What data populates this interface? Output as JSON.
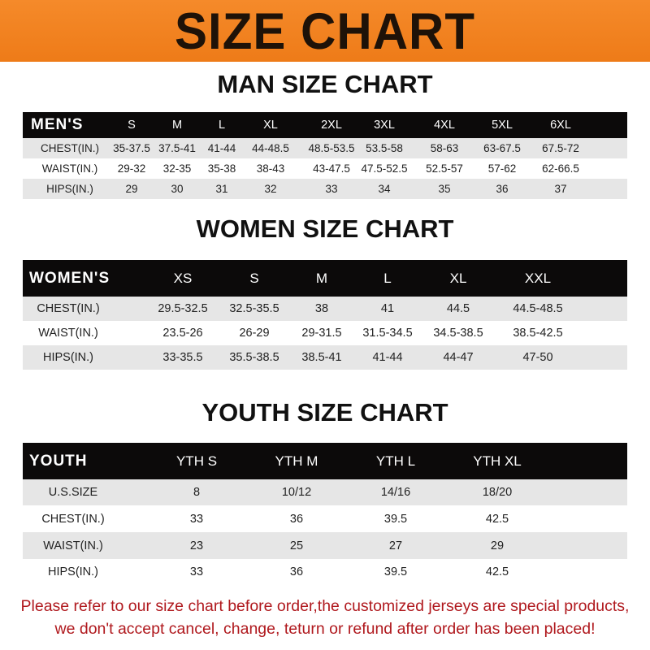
{
  "banner": {
    "title": "SIZE CHART",
    "color": "#f0801c"
  },
  "men": {
    "title": "MAN SIZE CHART",
    "header": [
      "MEN'S",
      "S",
      "M",
      "L",
      "XL",
      "2XL",
      "3XL",
      "4XL",
      "5XL",
      "6XL"
    ],
    "rows": [
      [
        "CHEST(IN.)",
        "35-37.5",
        "37.5-41",
        "41-44",
        "44-48.5",
        "48.5-53.5",
        "53.5-58",
        "58-63",
        "63-67.5",
        "67.5-72"
      ],
      [
        "WAIST(IN.)",
        "29-32",
        "32-35",
        "35-38",
        "38-43",
        "43-47.5",
        "47.5-52.5",
        "52.5-57",
        "57-62",
        "62-66.5"
      ],
      [
        "HIPS(IN.)",
        "29",
        "30",
        "31",
        "32",
        "33",
        "34",
        "35",
        "36",
        "37"
      ]
    ]
  },
  "women": {
    "title": "WOMEN SIZE CHART",
    "header": [
      "WOMEN'S",
      "XS",
      "S",
      "M",
      "L",
      "XL",
      "XXL"
    ],
    "rows": [
      [
        "CHEST(IN.)",
        "29.5-32.5",
        "32.5-35.5",
        "38",
        "41",
        "44.5",
        "44.5-48.5"
      ],
      [
        "WAIST(IN.)",
        "23.5-26",
        "26-29",
        "29-31.5",
        "31.5-34.5",
        "34.5-38.5",
        "38.5-42.5"
      ],
      [
        "HIPS(IN.)",
        "33-35.5",
        "35.5-38.5",
        "38.5-41",
        "41-44",
        "44-47",
        "47-50"
      ]
    ]
  },
  "youth": {
    "title": "YOUTH SIZE CHART",
    "header": [
      "YOUTH",
      "YTH S",
      "YTH M",
      "YTH L",
      "YTH XL"
    ],
    "rows": [
      [
        "U.S.SIZE",
        "8",
        "10/12",
        "14/16",
        "18/20"
      ],
      [
        "CHEST(IN.)",
        "33",
        "36",
        "39.5",
        "42.5"
      ],
      [
        "WAIST(IN.)",
        "23",
        "25",
        "27",
        "29"
      ],
      [
        "HIPS(IN.)",
        "33",
        "36",
        "39.5",
        "42.5"
      ]
    ]
  },
  "footer": {
    "line1": "Please refer to our size chart before order,the customized jerseys are special products,",
    "line2": "we don't accept cancel, change, teturn or refund after order has been placed!",
    "color": "#b0191e"
  }
}
